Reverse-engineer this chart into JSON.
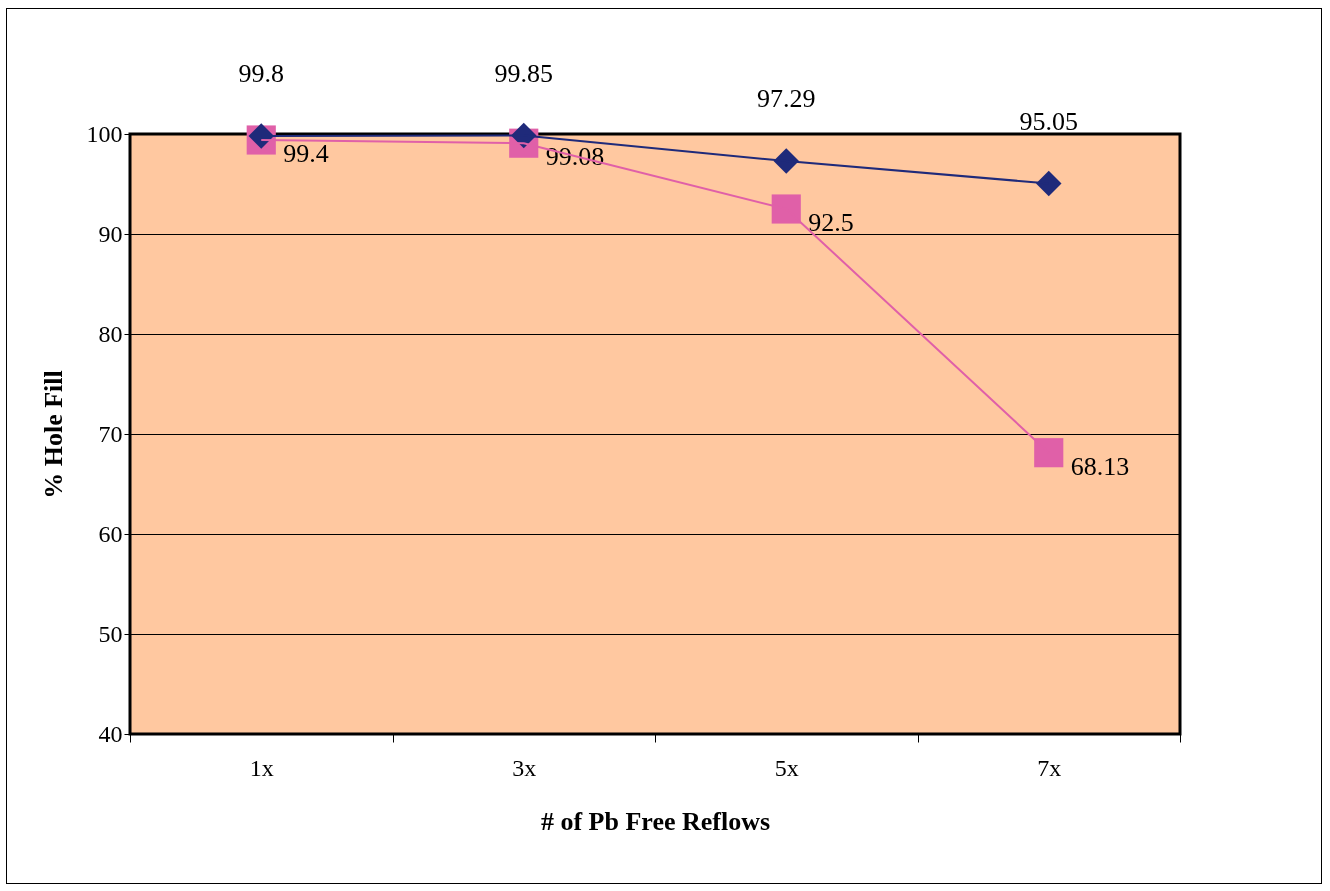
{
  "chart_data": {
    "type": "line",
    "xlabel": "# of Pb Free Reflows",
    "ylabel": "% Hole Fill",
    "categories": [
      "1x",
      "3x",
      "5x",
      "7x"
    ],
    "series": [
      {
        "color": "#1f2a7a",
        "marker": "diamond",
        "values": [
          99.8,
          99.85,
          97.29,
          95.05
        ]
      },
      {
        "color": "#e060a8",
        "marker": "square",
        "values": [
          99.4,
          99.08,
          92.5,
          68.13
        ]
      }
    ],
    "ylim": [
      40,
      100
    ],
    "yticks": [
      40,
      50,
      60,
      70,
      80,
      90,
      100
    ],
    "grid": "y",
    "data_labels": true
  }
}
